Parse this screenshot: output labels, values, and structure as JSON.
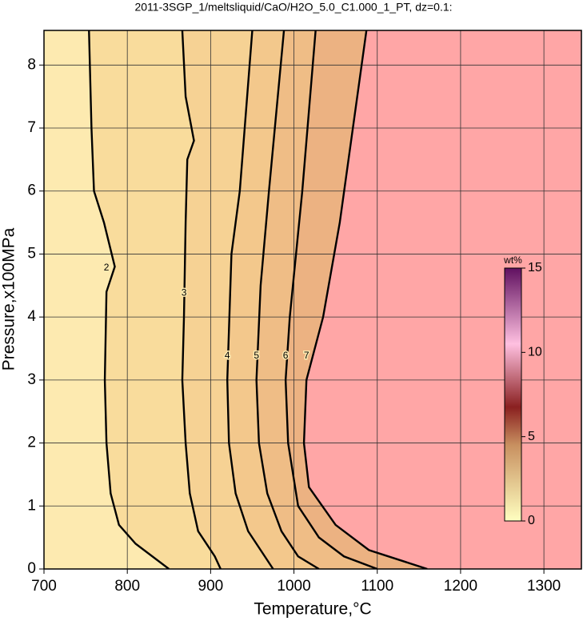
{
  "chart_data": {
    "type": "contour",
    "title": "2011-3SGP_1/meltsliquid/CaO/H2O_5.0_C1.000_1_PT, dz=0.1:",
    "xlabel": "Temperature,°C",
    "ylabel": "Pressure,x100MPa",
    "xlim": [
      700,
      1345
    ],
    "ylim": [
      0,
      8.55
    ],
    "xticks": [
      700,
      800,
      900,
      1000,
      1100,
      1200,
      1300
    ],
    "yticks": [
      0,
      1,
      2,
      3,
      4,
      5,
      6,
      7,
      8
    ],
    "grid": true,
    "background_color": "#fdeab0",
    "contours": [
      {
        "level": 2,
        "color": "#f9dc9c",
        "x": [
          754,
          757,
          760,
          772,
          785,
          775,
          773,
          775,
          780,
          790,
          810,
          850
        ],
        "y": [
          8.55,
          7,
          6,
          5.5,
          4.8,
          4.4,
          3,
          2,
          1.2,
          0.7,
          0.4,
          0
        ]
      },
      {
        "level": 3,
        "color": "#f6d294",
        "x": [
          866,
          870,
          880,
          872,
          870,
          868,
          866,
          870,
          875,
          885,
          905,
          912
        ],
        "y": [
          8.55,
          7.5,
          6.8,
          6.5,
          5.5,
          4,
          3,
          2,
          1.2,
          0.6,
          0.2,
          0
        ]
      },
      {
        "level": 4,
        "color": "#f3c88c",
        "x": [
          950,
          935,
          925,
          920,
          922,
          930,
          945,
          965,
          975
        ],
        "y": [
          8.55,
          6,
          5,
          3,
          2,
          1.2,
          0.6,
          0.2,
          0
        ]
      },
      {
        "level": 5,
        "color": "#efbd86",
        "x": [
          988,
          970,
          960,
          955,
          958,
          968,
          985,
          1005,
          1030
        ],
        "y": [
          8.55,
          6,
          4.5,
          3,
          2,
          1.2,
          0.6,
          0.2,
          0
        ]
      },
      {
        "level": 6,
        "color": "#ecb282",
        "x": [
          1026,
          1010,
          995,
          990,
          993,
          1005,
          1030,
          1060,
          1100
        ],
        "y": [
          8.55,
          6,
          4,
          3,
          2,
          1,
          0.5,
          0.2,
          0
        ]
      },
      {
        "level": 7,
        "color": "#ffa6a6",
        "x": [
          1087,
          1055,
          1035,
          1015,
          1012,
          1018,
          1050,
          1090,
          1160
        ],
        "y": [
          8.55,
          5.5,
          4,
          3,
          2,
          1.3,
          0.7,
          0.3,
          0
        ]
      }
    ],
    "colorbar": {
      "label": "wt%",
      "lim": [
        0,
        15
      ],
      "ticks": [
        0,
        5,
        10,
        15
      ]
    }
  }
}
